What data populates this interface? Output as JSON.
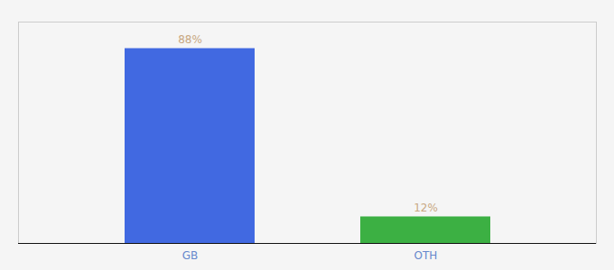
{
  "chart_data": {
    "type": "bar",
    "categories": [
      "GB",
      "OTH"
    ],
    "values": [
      88,
      12
    ],
    "value_labels": [
      "88%",
      "12%"
    ],
    "colors": [
      "#4169e1",
      "#3cb043"
    ],
    "ylim": [
      0,
      100
    ],
    "data_labels": true,
    "tick_labels": "x",
    "grid": false
  }
}
